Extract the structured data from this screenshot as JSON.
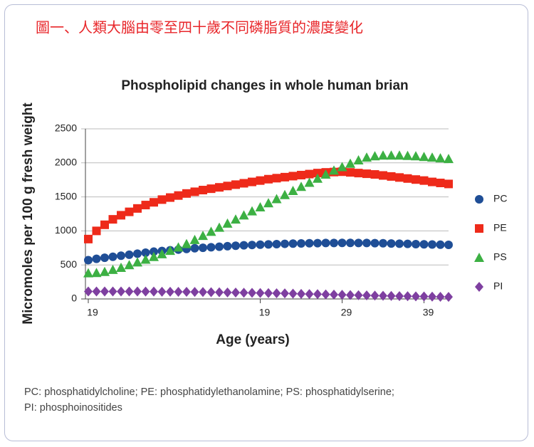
{
  "heading": "圖一、人類大腦由零至四十歲不同磷脂質的濃度變化",
  "chart_data": {
    "type": "scatter",
    "title": "Phospholipid changes in whole human brian",
    "x_label": "Age (years)",
    "y_label": "Micromoles per 100 g fresh weight",
    "categories": [
      "19",
      null,
      null,
      null,
      null,
      null,
      null,
      null,
      null,
      null,
      null,
      null,
      null,
      null,
      null,
      null,
      null,
      null,
      null,
      null,
      null,
      "19",
      null,
      null,
      null,
      null,
      null,
      null,
      null,
      null,
      null,
      "29",
      null,
      null,
      null,
      null,
      null,
      null,
      null,
      null,
      null,
      "39",
      null,
      null,
      null
    ],
    "ylim": [
      0,
      2500
    ],
    "yticks": [
      0,
      500,
      1000,
      1500,
      2000,
      2500
    ],
    "grid": true,
    "legend": "right",
    "series": [
      {
        "name": "PC",
        "color": "#1f4e96",
        "marker": "circle",
        "values": [
          570,
          590,
          605,
          620,
          635,
          650,
          665,
          680,
          695,
          705,
          715,
          725,
          735,
          745,
          752,
          760,
          768,
          775,
          782,
          788,
          793,
          798,
          802,
          806,
          810,
          813,
          816,
          818,
          820,
          822,
          823,
          824,
          824,
          823,
          822,
          820,
          818,
          815,
          812,
          809,
          806,
          803,
          800,
          797,
          795
        ]
      },
      {
        "name": "PE",
        "color": "#ee2a1a",
        "marker": "square",
        "values": [
          880,
          1000,
          1090,
          1170,
          1230,
          1280,
          1330,
          1380,
          1420,
          1460,
          1490,
          1520,
          1550,
          1575,
          1600,
          1620,
          1640,
          1660,
          1680,
          1700,
          1720,
          1740,
          1760,
          1775,
          1790,
          1805,
          1820,
          1835,
          1850,
          1860,
          1865,
          1870,
          1860,
          1850,
          1840,
          1830,
          1815,
          1800,
          1785,
          1770,
          1755,
          1740,
          1720,
          1705,
          1690
        ]
      },
      {
        "name": "PS",
        "color": "#3cb043",
        "marker": "triangle",
        "values": [
          380,
          385,
          400,
          430,
          460,
          500,
          540,
          580,
          620,
          660,
          710,
          760,
          810,
          870,
          930,
          990,
          1050,
          1110,
          1170,
          1230,
          1290,
          1350,
          1410,
          1470,
          1530,
          1590,
          1650,
          1710,
          1770,
          1830,
          1890,
          1940,
          1990,
          2040,
          2080,
          2100,
          2110,
          2110,
          2110,
          2105,
          2100,
          2090,
          2080,
          2070,
          2060
        ]
      },
      {
        "name": "PI",
        "color": "#7e3fa0",
        "marker": "diamond",
        "values": [
          110,
          110,
          110,
          110,
          110,
          110,
          110,
          108,
          108,
          106,
          106,
          105,
          104,
          103,
          102,
          100,
          98,
          96,
          94,
          92,
          90,
          88,
          86,
          84,
          82,
          78,
          75,
          72,
          70,
          67,
          64,
          61,
          58,
          55,
          52,
          50,
          47,
          45,
          42,
          40,
          38,
          36,
          34,
          32,
          30
        ]
      }
    ]
  },
  "footnote": [
    "PC: phosphatidylcholine; PE: phosphatidylethanolamine; PS: phosphatidylserine;",
    "PI: phosphoinositides"
  ]
}
